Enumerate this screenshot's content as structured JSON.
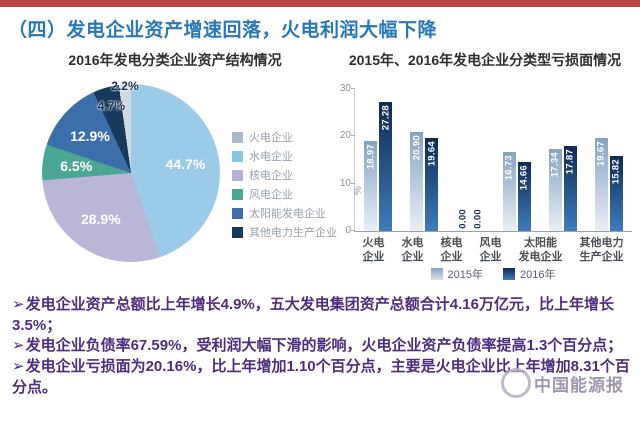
{
  "header": {
    "title": "（四）发电企业资产增速回落，火电利润大幅下降"
  },
  "chart_data": [
    {
      "type": "pie",
      "title": "2016年发电分类企业资产结构情况",
      "slices": [
        {
          "label": "44.7%",
          "value": 44.7,
          "color": "#9ccbe9"
        },
        {
          "label": "28.9%",
          "value": 28.9,
          "color": "#b9b6d6"
        },
        {
          "label": "6.5%",
          "value": 6.5,
          "color": "#4ba793"
        },
        {
          "label": "12.9%",
          "value": 12.9,
          "color": "#3c6ea9"
        },
        {
          "label": "4.7%",
          "value": 4.7,
          "color": "#16395c"
        },
        {
          "label": "2.2%",
          "value": 2.2,
          "color": "#d3d8de"
        }
      ],
      "legend": [
        {
          "label": "火电企业",
          "color": "#a4bccd"
        },
        {
          "label": "水电企业",
          "color": "#8cc6e4"
        },
        {
          "label": "核电企业",
          "color": "#b3b0d3"
        },
        {
          "label": "风电企业",
          "color": "#4ba793"
        },
        {
          "label": "太阳能发电企业",
          "color": "#3c6ea9"
        },
        {
          "label": "其他电力生产企业",
          "color": "#16395c"
        }
      ]
    },
    {
      "type": "bar",
      "title": "2015年、2016年发电企业分类型亏损面情况",
      "ylabel": "%",
      "ylim": [
        0,
        30
      ],
      "yticks": [
        0,
        10,
        20,
        30
      ],
      "categories": [
        "火电\n企业",
        "水电\n企业",
        "核电\n企业",
        "风电\n企业",
        "太阳能\n发电企业",
        "其他电力\n生产企业"
      ],
      "series": [
        {
          "name": "2015年",
          "values": [
            18.97,
            20.9,
            0.0,
            16.73,
            17.34,
            19.67
          ],
          "labels": [
            "18.97",
            "20.90",
            "0.00",
            "16.73",
            "17.34",
            "19.67"
          ]
        },
        {
          "name": "2016年",
          "values": [
            27.28,
            19.64,
            0.0,
            14.66,
            17.87,
            15.82
          ],
          "labels": [
            "27.28",
            "19.64",
            "0.00",
            "14.66",
            "17.87",
            "15.82"
          ]
        }
      ],
      "legend_position": "bottom",
      "grid": false
    }
  ],
  "bullets": {
    "marker": "➢",
    "items": [
      "发电企业资产总额比上年增长4.9%，五大发电集团资产总额合计4.16万亿元，比上年增长3.5%；",
      "发电企业负债率67.59%，受利润大幅下滑的影响，火电企业资产负债率提高1.3个百分点；",
      "发电企业亏损面为20.16%，比上年增加1.10个百分点，主要是火电企业比上年增加8.31个百分点。"
    ]
  },
  "watermark": {
    "text": "中国能源报"
  },
  "colors": {
    "accent_bar": "#b9463f",
    "slide_title": "#2878b8",
    "bullet_text": "#4e2d7e",
    "bar_2015_top": "#86a3c2",
    "bar_2015_bottom": "#eaeff6",
    "bar_2016_top": "#0e2b52",
    "bar_2016_bottom": "#3f7cba"
  }
}
